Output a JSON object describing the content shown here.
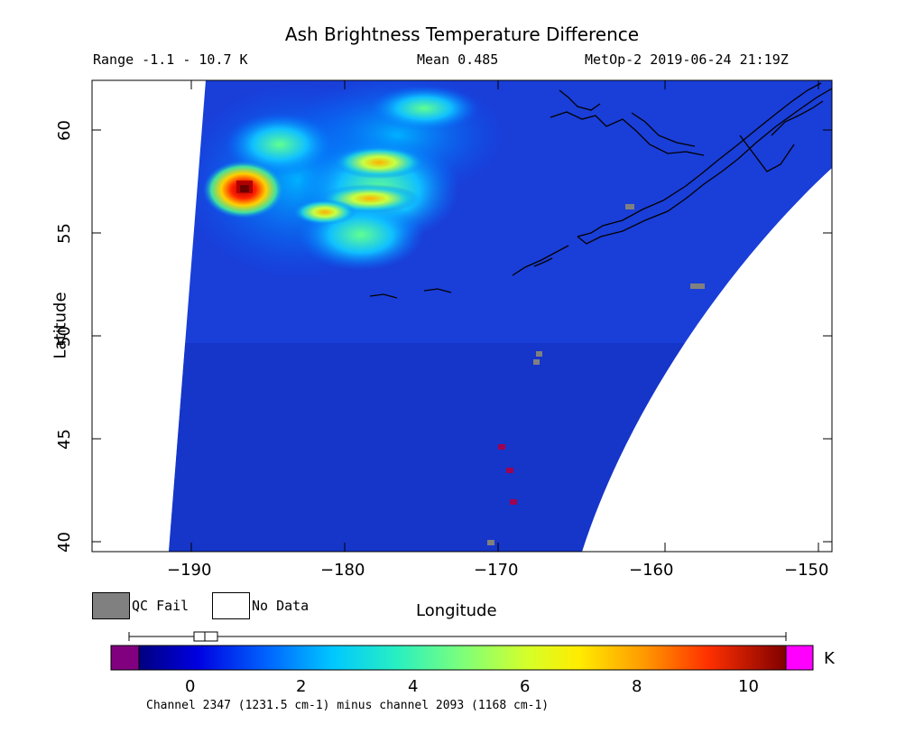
{
  "figure": {
    "title": "Ash Brightness Temperature Difference",
    "range": "Range -1.1 - 10.7 K",
    "mean": "Mean 0.485",
    "source": "MetOp-2 2019-06-24 21:19Z",
    "ylabel": "Latitude",
    "xlabel": "Longitude",
    "colorbar_unit": "K",
    "footnote": "Channel 2347 (1231.5 cm-1) minus channel 2093 (1168 cm-1)"
  },
  "legend": {
    "qc_fail_label": "QC Fail",
    "no_data_label": "No Data",
    "qc_fail_color": "#808080",
    "no_data_color": "#ffffff"
  },
  "axes": {
    "x_ticks": [
      "−190",
      "−180",
      "−170",
      "−160",
      "−150"
    ],
    "x_values": [
      -190,
      -180,
      -170,
      -160,
      -150
    ],
    "y_ticks": [
      "40",
      "45",
      "50",
      "55",
      "60"
    ],
    "y_values": [
      40,
      45,
      50,
      55,
      60
    ],
    "xlim": [
      -196,
      -150
    ],
    "ylim": [
      39.5,
      62.5
    ]
  },
  "colorbar": {
    "ticks": [
      "0",
      "2",
      "4",
      "6",
      "8",
      "10"
    ],
    "tick_values": [
      0,
      2,
      4,
      6,
      8,
      10
    ],
    "vmin": -1.1,
    "vmax": 10.7,
    "under_color": "#800080",
    "over_color": "#ff00ff"
  },
  "chart_data": {
    "type": "heatmap",
    "title": "Ash Brightness Temperature Difference",
    "xlabel": "Longitude",
    "ylabel": "Latitude",
    "units": "K",
    "range": [
      -1.1,
      10.7
    ],
    "mean": 0.485,
    "xlim": [
      -196,
      -150
    ],
    "ylim": [
      39.5,
      62.5
    ],
    "ash_features": [
      {
        "lon": -186.5,
        "lat": 57.2,
        "value": 10.2
      },
      {
        "lon": -178.0,
        "lat": 58.5,
        "value": 7.0
      },
      {
        "lon": -178.0,
        "lat": 56.8,
        "value": 6.5
      },
      {
        "lon": -183.5,
        "lat": 60.0,
        "value": 5.0
      },
      {
        "lon": -180.5,
        "lat": 55.8,
        "value": 4.5
      },
      {
        "lon": -175.0,
        "lat": 55.5,
        "value": 4.0
      }
    ],
    "qc_fail_points": [
      {
        "lon": -161.8,
        "lat": 55.5
      },
      {
        "lon": -157.8,
        "lat": 52.4
      },
      {
        "lon": -167.5,
        "lat": 49.0
      },
      {
        "lon": -167.8,
        "lat": 48.5
      },
      {
        "lon": -170.0,
        "lat": 40.0
      }
    ],
    "low_value_points": [
      {
        "lon": -170.3,
        "lat": 44.6
      },
      {
        "lon": -169.8,
        "lat": 43.4
      },
      {
        "lon": -169.5,
        "lat": 41.9
      }
    ]
  }
}
